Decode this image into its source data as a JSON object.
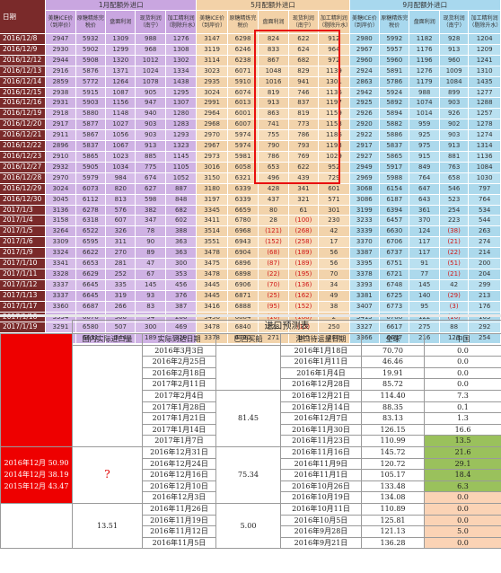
{
  "top_table": {
    "date_header": "日期",
    "group_headers": [
      "1月配额外进口",
      "5月配额外进口",
      "9月配额外进口"
    ],
    "sub_headers": [
      "美糖ICE价（到岸价）",
      "原糖精炼完税价",
      "盘面利润",
      "现货利润（南宁）",
      "加工精利润（剔除升水）"
    ],
    "rows": [
      [
        "2016/12/8",
        "2947",
        "5932",
        "1309",
        "988",
        "1276",
        "3147",
        "6298",
        "824",
        "622",
        "912",
        "2980",
        "5992",
        "1182",
        "928",
        "1204"
      ],
      [
        "2016/12/9",
        "2930",
        "5902",
        "1299",
        "968",
        "1308",
        "3119",
        "6246",
        "833",
        "624",
        "964",
        "2967",
        "5957",
        "1176",
        "913",
        "1209"
      ],
      [
        "2016/12/12",
        "2944",
        "5908",
        "1320",
        "1012",
        "1302",
        "3114",
        "6238",
        "867",
        "682",
        "972",
        "2960",
        "5960",
        "1196",
        "960",
        "1241"
      ],
      [
        "2016/12/13",
        "2916",
        "5876",
        "1371",
        "1024",
        "1334",
        "3023",
        "6071",
        "1048",
        "829",
        "1139",
        "2924",
        "5891",
        "1276",
        "1009",
        "1310"
      ],
      [
        "2016/12/14",
        "2859",
        "5772",
        "1264",
        "1078",
        "1438",
        "2935",
        "5910",
        "1016",
        "941",
        "1301",
        "2863",
        "5786",
        "1179",
        "1084",
        "1435"
      ],
      [
        "2016/12/15",
        "2938",
        "5915",
        "1087",
        "905",
        "1295",
        "3024",
        "6074",
        "819",
        "746",
        "1136",
        "2942",
        "5924",
        "988",
        "899",
        "1277"
      ],
      [
        "2016/12/16",
        "2931",
        "5903",
        "1156",
        "947",
        "1307",
        "2991",
        "6013",
        "913",
        "837",
        "1197",
        "2925",
        "5892",
        "1074",
        "903",
        "1288"
      ],
      [
        "2016/12/19",
        "2918",
        "5880",
        "1148",
        "940",
        "1280",
        "2964",
        "6001",
        "863",
        "819",
        "1159",
        "2926",
        "5894",
        "1014",
        "926",
        "1257"
      ],
      [
        "2016/12/20",
        "2917",
        "5877",
        "1027",
        "903",
        "1283",
        "2968",
        "6007",
        "741",
        "773",
        "1153",
        "2920",
        "5882",
        "959",
        "902",
        "1278"
      ],
      [
        "2016/12/21",
        "2911",
        "5867",
        "1056",
        "903",
        "1293",
        "2970",
        "5974",
        "755",
        "786",
        "1186",
        "2922",
        "5886",
        "925",
        "903",
        "1274"
      ],
      [
        "2016/12/22",
        "2896",
        "5837",
        "1067",
        "913",
        "1323",
        "2967",
        "5974",
        "790",
        "793",
        "1193",
        "2917",
        "5837",
        "975",
        "913",
        "1314"
      ],
      [
        "2016/12/23",
        "2910",
        "5865",
        "1023",
        "885",
        "1145",
        "2973",
        "5981",
        "786",
        "769",
        "1029",
        "2927",
        "5865",
        "915",
        "881",
        "1136"
      ],
      [
        "2016/12/27",
        "2932",
        "5905",
        "1034",
        "775",
        "1105",
        "3016",
        "6058",
        "653",
        "622",
        "952",
        "2949",
        "5917",
        "849",
        "763",
        "1084"
      ],
      [
        "2016/12/28",
        "2970",
        "5979",
        "984",
        "674",
        "1052",
        "3150",
        "6321",
        "496",
        "439",
        "729",
        "2969",
        "5988",
        "764",
        "658",
        "1030"
      ],
      [
        "2016/12/29",
        "3024",
        "6073",
        "820",
        "627",
        "887",
        "3180",
        "6339",
        "428",
        "341",
        "601",
        "3068",
        "6154",
        "647",
        "546",
        "797"
      ],
      [
        "2016/12/30",
        "3045",
        "6112",
        "813",
        "598",
        "848",
        "3197",
        "6339",
        "437",
        "321",
        "571",
        "3086",
        "6187",
        "643",
        "523",
        "764"
      ],
      [
        "2017/1/3",
        "3136",
        "6278",
        "576",
        "382",
        "682",
        "3345",
        "6659",
        "80",
        "61",
        "301",
        "3199",
        "6394",
        "361",
        "254",
        "534"
      ],
      [
        "2017/1/4",
        "3158",
        "6318",
        "607",
        "347",
        "602",
        "3411",
        "6780",
        "28",
        "(100)",
        "230",
        "3233",
        "6457",
        "370",
        "223",
        "544"
      ],
      [
        "2017/1/5",
        "3264",
        "6522",
        "326",
        "78",
        "388",
        "3514",
        "6968",
        "(121)",
        "(268)",
        "42",
        "3339",
        "6630",
        "124",
        "(38)",
        "263"
      ],
      [
        "2017/1/6",
        "3309",
        "6595",
        "311",
        "90",
        "363",
        "3551",
        "6943",
        "(152)",
        "(258)",
        "17",
        "3370",
        "6706",
        "117",
        "(21)",
        "274"
      ],
      [
        "2017/1/9",
        "3324",
        "6622",
        "270",
        "89",
        "363",
        "3478",
        "6904",
        "(68)",
        "(189)",
        "56",
        "3387",
        "6737",
        "117",
        "(22)",
        "214"
      ],
      [
        "2017/1/10",
        "3341",
        "6653",
        "281",
        "47",
        "300",
        "3475",
        "6896",
        "(87)",
        "(189)",
        "56",
        "3395",
        "6751",
        "91",
        "(51)",
        "200"
      ],
      [
        "2017/1/11",
        "3328",
        "6629",
        "252",
        "67",
        "353",
        "3478",
        "6898",
        "(22)",
        "(195)",
        "70",
        "3378",
        "6721",
        "77",
        "(21)",
        "204"
      ],
      [
        "2017/1/12",
        "3337",
        "6645",
        "335",
        "145",
        "456",
        "3445",
        "6906",
        "(70)",
        "(136)",
        "34",
        "3393",
        "6748",
        "145",
        "42",
        "299"
      ],
      [
        "2017/1/13",
        "3337",
        "6645",
        "319",
        "93",
        "376",
        "3445",
        "6871",
        "(25)",
        "(162)",
        "49",
        "3381",
        "6725",
        "140",
        "(29)",
        "213"
      ],
      [
        "2017/1/17",
        "3360",
        "6687",
        "266",
        "83",
        "387",
        "3416",
        "6888",
        "(95)",
        "(152)",
        "38",
        "3407",
        "6773",
        "95",
        "(3)",
        "176"
      ],
      [
        "2017/1/18",
        "3334",
        "6676",
        "306",
        "94",
        "266",
        "3456",
        "6884",
        "(16)",
        "(188)",
        "2",
        "3415",
        "6788",
        "122",
        "(16)",
        "163"
      ],
      [
        "2017/1/19",
        "3291",
        "6580",
        "507",
        "300",
        "469",
        "3478",
        "6840",
        "228",
        "(12)",
        "250",
        "3327",
        "6617",
        "275",
        "88",
        "292"
      ],
      [
        "2017/1/20",
        "3329",
        "6631",
        "344",
        "189",
        "329",
        "3378",
        "6720",
        "271",
        "140",
        "280",
        "3366",
        "6697",
        "216",
        "123",
        "254"
      ]
    ]
  },
  "forecast": {
    "title": "进口预测表",
    "headers": [
      "国内实际进口量",
      "实际到达日期",
      "巴西买船",
      "港口待运量日期",
      "全球",
      "中国"
    ],
    "left_label": "2016年12月\n50.90\n2014年12月\n38.19\n2015年12月\n43.47",
    "domestic_mid": "?",
    "domestic_bottom": "13.51",
    "brazil_values": [
      "81.45",
      "75.34",
      "5.00"
    ],
    "rows": [
      {
        "arrive": "2016年3月3日",
        "port": "2016年1月18日",
        "global": "70.70",
        "china": "0.0"
      },
      {
        "arrive": "2016年2月25日",
        "port": "2016年1月11日",
        "global": "46.46",
        "china": "0.0"
      },
      {
        "arrive": "2016年2月18日",
        "port": "2016年1月4日",
        "global": "19.91",
        "china": "0.0"
      },
      {
        "arrive": "2017年2月11日",
        "port": "2016年12月28日",
        "global": "85.72",
        "china": "0.0"
      },
      {
        "arrive": "2017年2月4日",
        "port": "2016年12月21日",
        "global": "114.40",
        "china": "7.3"
      },
      {
        "arrive": "2017年1月28日",
        "port": "2016年12月14日",
        "global": "88.35",
        "china": "0.1"
      },
      {
        "arrive": "2017年1月21日",
        "port": "2016年12月7日",
        "global": "83.13",
        "china": "1.3"
      },
      {
        "arrive": "2017年1月14日",
        "port": "2016年11月30日",
        "global": "126.15",
        "china": "16.6"
      },
      {
        "arrive": "2017年1月7日",
        "port": "2016年11月23日",
        "global": "110.99",
        "china": "13.5"
      },
      {
        "arrive": "2016年12月31日",
        "port": "2016年11月16日",
        "global": "145.72",
        "china": "21.6"
      },
      {
        "arrive": "2016年12月24日",
        "port": "2016年11月9日",
        "global": "120.72",
        "china": "29.1"
      },
      {
        "arrive": "2016年12月16日",
        "port": "2016年11月1日",
        "global": "105.17",
        "china": "18.4"
      },
      {
        "arrive": "2016年12月10日",
        "port": "2016年10月26日",
        "global": "133.48",
        "china": "6.3"
      },
      {
        "arrive": "2016年12月3日",
        "port": "2016年10月19日",
        "global": "134.08",
        "china": "0.0"
      },
      {
        "arrive": "2016年11月26日",
        "port": "2016年10月11日",
        "global": "110.89",
        "china": "0.0"
      },
      {
        "arrive": "2016年11月19日",
        "port": "2016年10月5日",
        "global": "125.81",
        "china": "0.0"
      },
      {
        "arrive": "2016年11月12日",
        "port": "2016年9月28日",
        "global": "121.13",
        "china": "5.0"
      },
      {
        "arrive": "2016年11月5日",
        "port": "2016年9月21日",
        "global": "136.28",
        "china": "0.0"
      }
    ],
    "colors": {
      "red": "#ee0000",
      "green": "#9ac15c",
      "orange": "#fbd3b5"
    }
  }
}
